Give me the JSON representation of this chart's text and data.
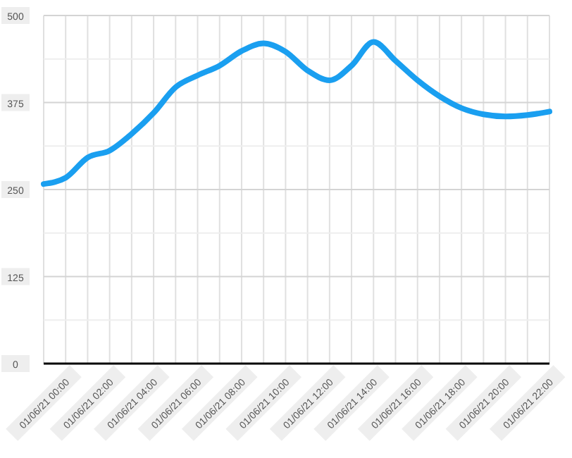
{
  "chart_data": {
    "type": "line",
    "categories": [
      "01/06/21 00:00",
      null,
      "01/06/21 02:00",
      null,
      "01/06/21 04:00",
      null,
      "01/06/21 06:00",
      null,
      "01/06/21 08:00",
      null,
      "01/06/21 10:00",
      null,
      "01/06/21 12:00",
      null,
      "01/06/21 14:00",
      null,
      "01/06/21 16:00",
      null,
      "01/06/21 18:00",
      null,
      "01/06/21 20:00",
      null,
      "01/06/21 22:00",
      null
    ],
    "series": [
      {
        "color": "#1a9ff0",
        "values": [
          258,
          267,
          296,
          306,
          330,
          360,
          397,
          414,
          428,
          449,
          460,
          448,
          421,
          407,
          428,
          462,
          435,
          407,
          384,
          367,
          358,
          355,
          357,
          362
        ]
      }
    ],
    "ylim": [
      0,
      500
    ],
    "yticks": [
      0,
      {
        "value": 62.5,
        "label": null
      },
      125,
      {
        "value": 187.5,
        "label": null
      },
      250,
      {
        "value": 312.5,
        "label": null
      },
      375,
      {
        "value": 437.5,
        "label": null
      },
      500
    ],
    "grid": true,
    "marker": "none",
    "line_style": "solid"
  }
}
